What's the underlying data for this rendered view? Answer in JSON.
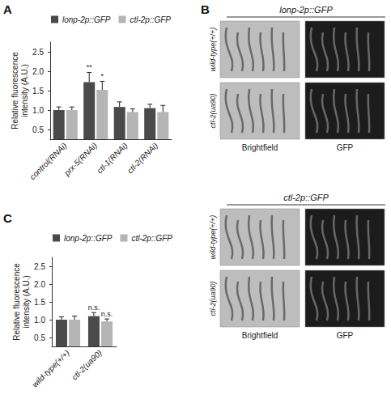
{
  "chart_data": [
    {
      "panel": "A",
      "type": "bar",
      "categories": [
        "control(RNAi)",
        "prx-5(RNAi)",
        "ctl-1(RNAi)",
        "ctl-2(RNAi)"
      ],
      "series": [
        {
          "name": "lonp-2p::GFP",
          "color": "#4a4a4a",
          "values": [
            1.0,
            1.72,
            1.08,
            1.05
          ],
          "errors": [
            0.08,
            0.25,
            0.13,
            0.1
          ],
          "significance": [
            null,
            "**",
            null,
            null
          ]
        },
        {
          "name": "ctl-2p::GFP",
          "color": "#b5b5b5",
          "values": [
            1.0,
            1.52,
            0.95,
            0.95
          ],
          "errors": [
            0.08,
            0.22,
            0.08,
            0.17
          ],
          "significance": [
            null,
            "*",
            null,
            null
          ]
        }
      ],
      "ylabel": "Relative fluorescence\nintensity (A.U.)",
      "ylim": [
        0.25,
        2.75
      ],
      "yticks": [
        {
          "value": 0.5,
          "label": "0.5"
        },
        {
          "value": 1.0,
          "label": "1.0"
        },
        {
          "value": 1.5,
          "label": "1.5"
        },
        {
          "value": 2.0,
          "label": "2.0"
        },
        {
          "value": 2.5,
          "label": "2.5"
        }
      ],
      "grid": false,
      "legend": "top"
    },
    {
      "panel": "C",
      "type": "bar",
      "categories": [
        "wild-type(+/+)",
        "ctl-2(ua90)"
      ],
      "series": [
        {
          "name": "lonp-2p::GFP",
          "color": "#4a4a4a",
          "values": [
            1.0,
            1.1
          ],
          "errors": [
            0.08,
            0.1
          ],
          "significance": [
            null,
            "n.s."
          ]
        },
        {
          "name": "ctl-2p::GFP",
          "color": "#b5b5b5",
          "values": [
            1.0,
            0.95
          ],
          "errors": [
            0.1,
            0.07
          ],
          "significance": [
            null,
            "n.s."
          ]
        }
      ],
      "ylabel": "Relative fluorescence\nintensity (A.U.)",
      "ylim": [
        0.25,
        2.75
      ],
      "yticks": [
        {
          "value": 0.5,
          "label": "0.5"
        },
        {
          "value": 1.0,
          "label": "1.0"
        },
        {
          "value": 1.5,
          "label": "1.5"
        },
        {
          "value": 2.0,
          "label": "2.0"
        },
        {
          "value": 2.5,
          "label": "2.5"
        }
      ],
      "grid": false,
      "legend": "top"
    }
  ],
  "image_panel": {
    "panel": "B",
    "groups": [
      {
        "title": "lonp-2p::GFP",
        "rows": [
          "wild-type(+/+)",
          "ctl-2(ua90)"
        ],
        "columns": [
          "Brightfield",
          "GFP"
        ]
      },
      {
        "title": "ctl-2p::GFP",
        "rows": [
          "wild-type(+/+)",
          "ctl-2(ua90)"
        ],
        "columns": [
          "Brightfield",
          "GFP"
        ]
      }
    ]
  }
}
